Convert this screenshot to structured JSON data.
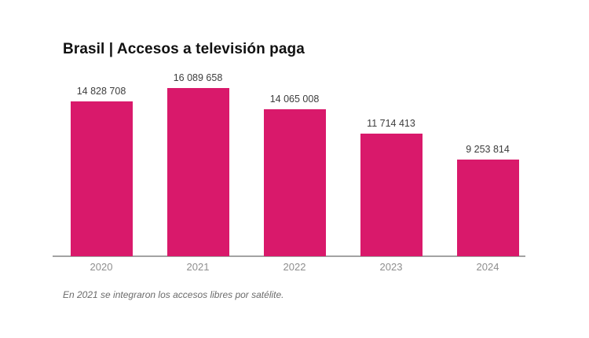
{
  "page": {
    "background_color": "#ffffff"
  },
  "header": {
    "title": "Brasil | Accesos a televisión paga"
  },
  "footnote": {
    "text": "En 2021 se integraron los accesos libres por satélite."
  },
  "chart_data": {
    "type": "bar",
    "title": "Brasil | Accesos a televisión paga",
    "categories": [
      "2020",
      "2021",
      "2022",
      "2023",
      "2024"
    ],
    "values": [
      14828708,
      16089658,
      14065008,
      11714413,
      9253814
    ],
    "value_labels": [
      "14 828 708",
      "16 089 658",
      "14 065 008",
      "11 714 413",
      "9 253 814"
    ],
    "xlabel": "",
    "ylabel": "",
    "ylim": [
      0,
      16089658
    ],
    "grid": false,
    "legend": "none",
    "annotation": "En 2021 se integraron los accesos libres por satélite.",
    "bar_color": "#d9196b",
    "axis_line_color": "#a3a3a3",
    "tick_label_color": "#8e8e8e",
    "value_label_color": "#3d3d3d",
    "title_color": "#111111"
  }
}
